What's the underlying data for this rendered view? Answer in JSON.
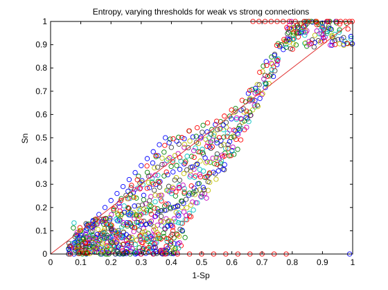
{
  "chart_data": {
    "type": "scatter",
    "title": "Entropy, varying thresholds for weak vs strong connections",
    "xlabel": "1-Sp",
    "ylabel": "Sn",
    "xlim": [
      0,
      1
    ],
    "ylim": [
      0,
      1
    ],
    "x_ticks": [
      "0",
      "0.1",
      "0.2",
      "0.3",
      "0.4",
      "0.5",
      "0.6",
      "0.7",
      "0.8",
      "0.9",
      "1"
    ],
    "y_ticks": [
      "0",
      "0.1",
      "0.2",
      "0.3",
      "0.4",
      "0.5",
      "0.6",
      "0.7",
      "0.8",
      "0.9",
      "1"
    ],
    "grid": false,
    "legend": "none",
    "marker": "open-circle",
    "reference_line": {
      "x": [
        0,
        1
      ],
      "y": [
        0,
        1
      ],
      "color": "#e03030"
    },
    "colors": [
      "#0000ff",
      "#008000",
      "#ff0000",
      "#00bfbf",
      "#bf00bf",
      "#bfbf00",
      "#404040"
    ],
    "series": [
      {
        "color": "#ff0000",
        "points": [
          [
            0.67,
            1.0
          ],
          [
            0.69,
            1.0
          ],
          [
            0.71,
            1.0
          ],
          [
            0.73,
            1.0
          ],
          [
            0.75,
            1.0
          ],
          [
            0.77,
            1.0
          ],
          [
            0.79,
            1.0
          ],
          [
            0.81,
            1.0
          ],
          [
            0.84,
            1.0
          ],
          [
            0.88,
            1.0
          ],
          [
            0.92,
            1.0
          ],
          [
            0.96,
            1.0
          ],
          [
            0.99,
            1.0
          ],
          [
            0.3,
            0.0
          ],
          [
            0.34,
            0.0
          ],
          [
            0.38,
            0.0
          ],
          [
            0.42,
            0.0
          ],
          [
            0.46,
            0.0
          ],
          [
            0.5,
            0.0
          ],
          [
            0.54,
            0.0
          ],
          [
            0.58,
            0.0
          ],
          [
            0.62,
            0.0
          ],
          [
            0.66,
            0.0
          ],
          [
            0.7,
            0.0
          ],
          [
            0.74,
            0.0
          ],
          [
            0.78,
            0.0
          ]
        ]
      },
      {
        "color": "#0000ff",
        "points": [
          [
            0.99,
            0.0
          ],
          [
            0.06,
            0.02
          ],
          [
            0.08,
            0.05
          ],
          [
            0.1,
            0.08
          ],
          [
            0.12,
            0.11
          ],
          [
            0.14,
            0.14
          ],
          [
            0.16,
            0.17
          ],
          [
            0.18,
            0.2
          ],
          [
            0.2,
            0.23
          ],
          [
            0.22,
            0.26
          ],
          [
            0.24,
            0.29
          ],
          [
            0.26,
            0.32
          ],
          [
            0.28,
            0.35
          ],
          [
            0.3,
            0.38
          ],
          [
            0.32,
            0.41
          ],
          [
            0.34,
            0.44
          ],
          [
            0.36,
            0.47
          ],
          [
            0.38,
            0.5
          ]
        ]
      }
    ]
  }
}
